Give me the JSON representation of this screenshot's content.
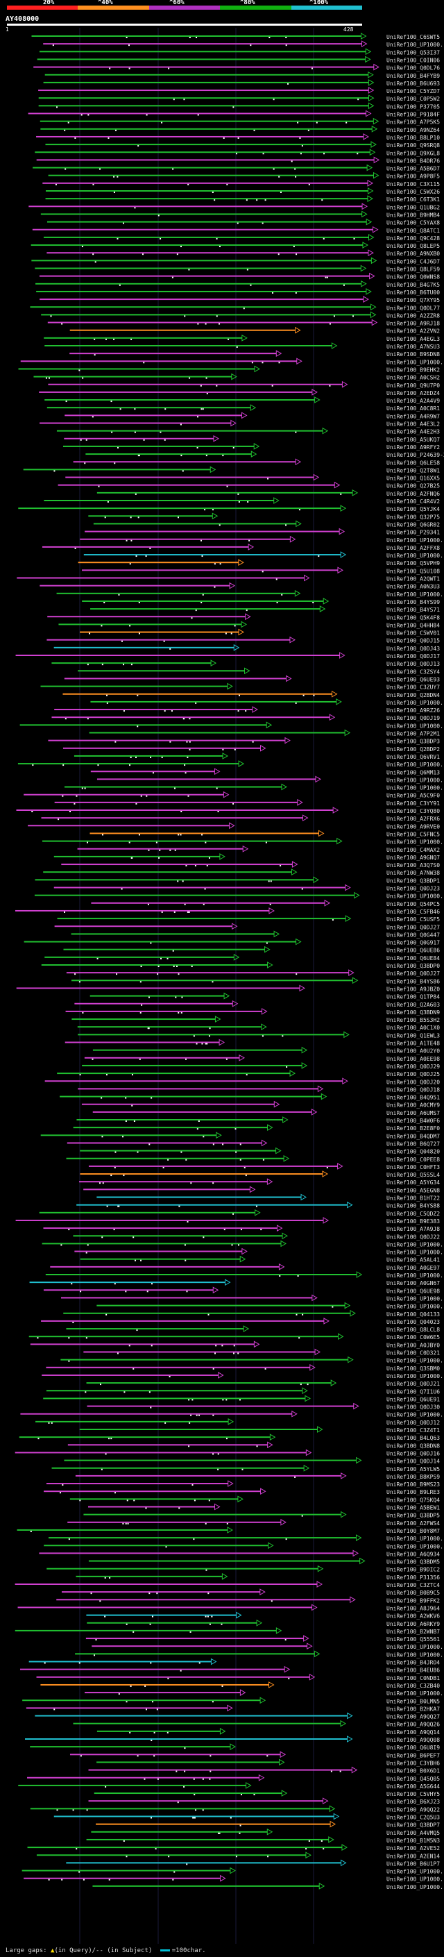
{
  "header": {
    "percent_labels": [
      "20%",
      "^40%",
      "^60%",
      "^80%",
      "^100%"
    ],
    "colors": [
      "#ff2020",
      "#ff9020",
      "#b030c0",
      "#10b010",
      "#20c0d0"
    ],
    "query_name": "AY408000",
    "query_start": "1",
    "query_end": "428"
  },
  "hits": [
    "UniRef100_C6SWT5",
    "UniRef100_UP1000...",
    "UniRef100_Q53I37",
    "UniRef100_C0IN06",
    "UniRef100_Q0DL76",
    "UniRef100_B4FYB9",
    "UniRef100_B6U693",
    "UniRef100_C5YZD7",
    "UniRef100_C0P5W2",
    "UniRef100_P37705",
    "UniRef100_P9184F",
    "UniRef100_A7P5K5",
    "UniRef100_A9NZ64",
    "UniRef100_B8LP10",
    "UniRef100_Q9SRQ8",
    "UniRef100_Q9XGL8",
    "UniRef100_B4DR76",
    "UniRef100_A5B6D7",
    "UniRef100_A9P8F5",
    "UniRef100_C3X115",
    "UniRef100_C5WX26",
    "UniRef100_C6T3K1",
    "UniRef100_Q1UBG2",
    "UniRef100_B9HMB4",
    "UniRef100_C5YAX8",
    "UniRef100_Q8ATC1",
    "UniRef100_Q9C428",
    "UniRef100_Q8LEP5",
    "UniRef100_A9NXB0",
    "UniRef100_C4J6D7",
    "UniRef100_Q8LF59",
    "UniRef100_Q0WNS8",
    "UniRef100_B4G7K5",
    "UniRef100_B6TU00",
    "UniRef100_Q7XY95",
    "UniRef100_Q0DL77",
    "UniRef100_A2ZZR8",
    "UniRef100_A9RJ18",
    "UniRef100_A2ZVN2",
    "UniRef100_A4EGL3",
    "UniRef100_A7NSU3",
    "UniRef100_B9SDN8",
    "UniRef100_UP1000...",
    "UniRef100_B9EHK2",
    "UniRef100_A0CSH2",
    "UniRef100_Q9U7P0",
    "UniRef100_A2EDZ4",
    "UniRef100_A2A4V9",
    "UniRef100_A0C8R1",
    "UniRef100_A4R9W7",
    "UniRef100_A4E3L2",
    "UniRef100_A4E2H3",
    "UniRef100_A5UKQ7",
    "UniRef100_A9RFY2",
    "UniRef100_P24639-2",
    "UniRef100_Q6LE58",
    "UniRef100_Q2T8W1",
    "UniRef100_Q16XX5",
    "UniRef100_Q27B25",
    "UniRef100_A2FNQ6",
    "UniRef100_C4R4V2",
    "UniRef100_Q5YJK4",
    "UniRef100_Q32P75",
    "UniRef100_Q6GR02",
    "UniRef100_P29341",
    "UniRef100_UP1000...",
    "UniRef100_A2FFX8",
    "UniRef100_UP1000...",
    "UniRef100_Q5VPH9",
    "UniRef100_Q5U108",
    "UniRef100_A2QWT1",
    "UniRef100_A0N3U3",
    "UniRef100_UP1000...",
    "UniRef100_B4YS99",
    "UniRef100_B4YS71",
    "UniRef100_Q5K4F8",
    "UniRef100_Q4HH84",
    "UniRef100_C5WV01",
    "UniRef100_Q0DJ15",
    "UniRef100_Q0DJ43",
    "UniRef100_Q0DJ17",
    "UniRef100_Q0DJ13",
    "UniRef100_C3ZSY4",
    "UniRef100_Q6UE93",
    "UniRef100_C3ZUY7",
    "UniRef100_Q2BDN4",
    "UniRef100_UP1000...",
    "UniRef100_A9RZ26",
    "UniRef100_Q0DJ19",
    "UniRef100_UP1000...",
    "UniRef100_A7P2M1",
    "UniRef100_Q3BDP3",
    "UniRef100_Q2BDP2",
    "UniRef100_Q6VRV1",
    "UniRef100_UP1000...",
    "UniRef100_Q6MM13",
    "UniRef100_UP1000...",
    "UniRef100_UP1000...",
    "UniRef100_A5C9F0",
    "UniRef100_C3YY91",
    "UniRef100_C3YQ80",
    "UniRef100_A2FRX6",
    "UniRef100_A9RVE0",
    "UniRef100_C5FNC5",
    "UniRef100_UP1000...",
    "UniRef100_C4MAX2",
    "UniRef100_A9GNQ7",
    "UniRef100_A3Q7S0",
    "UniRef100_A7NW38",
    "UniRef100_Q3BDP1",
    "UniRef100_Q0DJ23",
    "UniRef100_UP1000...",
    "UniRef100_Q54PC5",
    "UniRef100_C5FB46",
    "UniRef100_C5USF5",
    "UniRef100_Q0DJ27",
    "UniRef100_Q0G447",
    "UniRef100_Q0G917",
    "UniRef100_Q6UE86",
    "UniRef100_Q6UE84",
    "UniRef100_Q3BDP0",
    "UniRef100_Q0DJ27",
    "UniRef100_B4YS86",
    "UniRef100_A9JBZ0",
    "UniRef100_Q1TP84",
    "UniRef100_Q2A603",
    "UniRef100_Q3BDN9",
    "UniRef100_B5S3H2",
    "UniRef100_A0C1X0",
    "UniRef100_Q1EWL3",
    "UniRef100_A1TE48",
    "UniRef100_A0U2Y0",
    "UniRef100_A0EE98",
    "UniRef100_Q0DJ29",
    "UniRef100_Q0DJ25",
    "UniRef100_Q0DJ20",
    "UniRef100_Q0DJ18",
    "UniRef100_B4Q951",
    "UniRef100_A0CMY9",
    "UniRef100_A6UMS7",
    "UniRef100_B4W0F6",
    "UniRef100_B2E8F0",
    "UniRef100_B4QDM7",
    "UniRef100_B6Q727",
    "UniRef100_Q04820",
    "UniRef100_C0PEE8",
    "UniRef100_C0HFT3",
    "UniRef100_Q5SSL4",
    "UniRef100_A5YG34",
    "UniRef100_A5EGN8",
    "UniRef100_B1HT22",
    "UniRef100_B4YS88",
    "UniRef100_C5QDZ2",
    "UniRef100_B9E383",
    "UniRef100_A7A9J8",
    "UniRef100_Q0DJ22",
    "UniRef100_UP1000...",
    "UniRef100_UP1000...",
    "UniRef100_A5AL41",
    "UniRef100_A0GE97",
    "UniRef100_UP1000...",
    "UniRef100_A0GN67",
    "UniRef100_Q6UE98",
    "UniRef100_UP1000...",
    "UniRef100_UP1000...",
    "UniRef100_Q04133",
    "UniRef100_Q04023",
    "UniRef100_Q8LCL8",
    "UniRef100_C0W6E5",
    "UniRef100_A0JBY0",
    "UniRef100_C0D321",
    "UniRef100_UP1000...",
    "UniRef100_Q3SBM0",
    "UniRef100_UP1000...",
    "UniRef100_Q0DJ21",
    "UniRef100_Q7I1U6",
    "UniRef100_Q6UE91",
    "UniRef100_Q0DJ30",
    "UniRef100_UP1000...",
    "UniRef100_Q0DJ12",
    "UniRef100_C3Z4T1",
    "UniRef100_B4LQ63",
    "UniRef100_Q3BDN8",
    "UniRef100_Q0DJ16",
    "UniRef100_Q0DJ14",
    "UniRef100_A5YLW5",
    "UniRef100_B8KPS9",
    "UniRef100_B9MS23",
    "UniRef100_B9LRE3",
    "UniRef100_Q75KQ4",
    "UniRef100_A5BEW1",
    "UniRef100_Q3BDP5",
    "UniRef100_A2FWS4",
    "UniRef100_B0Y8M7",
    "UniRef100_UP1000...",
    "UniRef100_UP1000...",
    "UniRef100_A6Q934",
    "UniRef100_Q3BDM5",
    "UniRef100_B9DIC2",
    "UniRef100_P31356",
    "UniRef100_C3ZTC4",
    "UniRef100_B0B9C5",
    "UniRef100_B9FFK2",
    "UniRef100_A8J964",
    "UniRef100_A2WKV6",
    "UniRef100_A6RKY9",
    "UniRef100_B2WNB7",
    "UniRef100_Q55561",
    "UniRef100_UP1000...",
    "UniRef100_UP1000...",
    "UniRef100_B4JRO4",
    "UniRef100_B4EU86",
    "UniRef100_C0NDB1",
    "UniRef100_C3ZB40",
    "UniRef100_UP1000...",
    "UniRef100_B0LMN5",
    "UniRef100_B2HKA7",
    "UniRef100_A9QQ27",
    "UniRef100_A9QQ26",
    "UniRef100_A9QQ14",
    "UniRef100_A9QQ08",
    "UniRef100_Q6U8I9",
    "UniRef100_B6PEF7",
    "UniRef100_C3YBH6",
    "UniRef100_B0X6D1",
    "UniRef100_Q45Q05",
    "UniRef100_A5G644",
    "UniRef100_C5VHY5",
    "UniRef100_B6XJ23",
    "UniRef100_A9QQ22",
    "UniRef100_C2Q5U3",
    "UniRef100_Q3BDP7",
    "UniRef100_A4VMQ5",
    "UniRef100_B1M5N3",
    "UniRef100_A2VE52",
    "UniRef100_A2EN14",
    "UniRef100_B6U1P7",
    "UniRef100_UP1000...",
    "UniRef100_UP1000...",
    "UniRef100_UP1000..."
  ],
  "footer": {
    "large_gaps_label": "Large gaps:",
    "in_query_label": "(in Query)/-- (in Subject)",
    "scale_label": "=100char."
  }
}
